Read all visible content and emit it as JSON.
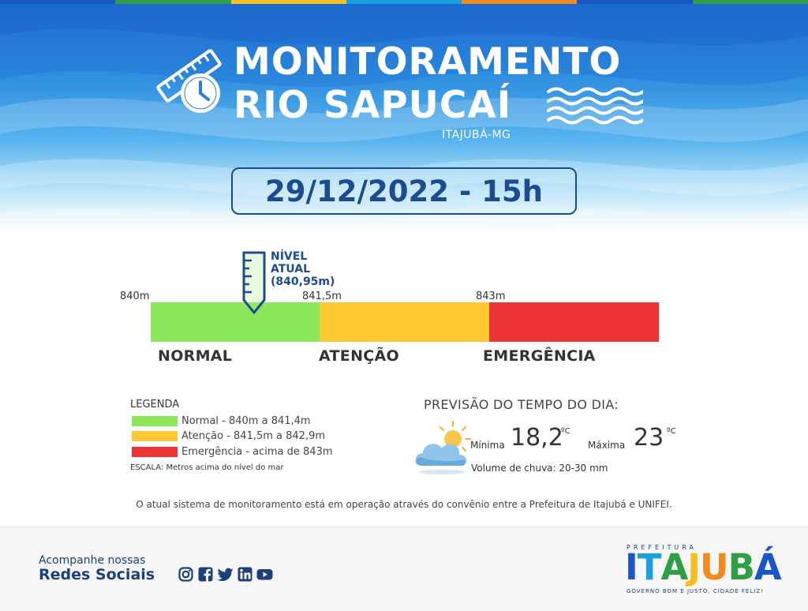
{
  "header": {
    "title_line1": "MONITORAMENTO",
    "title_line2": "RIO SAPUCAÍ",
    "location": "ITAJUBÁ-MG"
  },
  "date_time": "29/12/2022 - 15h",
  "level_scale": {
    "ticks": [
      "840m",
      "841,5m",
      "843m"
    ],
    "current_label_line1": "NÍVEL",
    "current_label_line2": "ATUAL",
    "current_label_line3": "(840,95m)",
    "current_value_m": 840.95,
    "zones": [
      {
        "name": "NORMAL",
        "color": "#8de75b"
      },
      {
        "name": "ATENÇÃO",
        "color": "#fdc832"
      },
      {
        "name": "EMERGÊNCIA",
        "color": "#ec3336"
      }
    ]
  },
  "legend": {
    "title": "LEGENDA",
    "items": [
      {
        "text": "Normal - 840m a 841,4m",
        "color": "#8de75b"
      },
      {
        "text": "Atenção - 841,5m a 842,9m",
        "color": "#fdc832"
      },
      {
        "text": "Emergência - acima de 843m",
        "color": "#ec3336"
      }
    ],
    "scale_note": "ESCALA: Metros acima do nível do mar"
  },
  "weather": {
    "title": "PREVISÃO DO TEMPO DO DIA:",
    "min_label": "Mínima",
    "min_value": "18,2",
    "max_label": "Máxima",
    "max_value": "23",
    "unit": "ºC",
    "rain": "Volume de chuva: 20-30 mm",
    "icon": "partly-cloudy-icon"
  },
  "disclaimer": "O atual sistema de monitoramento está em operação através do convênio entre a Prefeitura de Itajubá e UNIFEI.",
  "footer": {
    "follow_line1": "Acompanhe nossas",
    "follow_line2": "Redes Sociais",
    "social_icons": [
      "instagram-icon",
      "facebook-icon",
      "twitter-icon",
      "linkedin-icon",
      "youtube-icon"
    ],
    "brand_top": "PREFEITURA",
    "brand_main": "ITAJUBÁ",
    "brand_sub": "GOVERNO BOM E JUSTO, CIDADE FELIZ!",
    "brand_colors": [
      "#1c56c4",
      "#1aa0df",
      "#2e9e47",
      "#f4c01e",
      "#f08a1d",
      "#2e9e47",
      "#1c56c4"
    ]
  },
  "top_stripe_colors": [
    "#1c56c4",
    "#2e9e47",
    "#f4c01e",
    "#1aa0df",
    "#f08a1d",
    "#1c56c4",
    "#2e9e47"
  ]
}
